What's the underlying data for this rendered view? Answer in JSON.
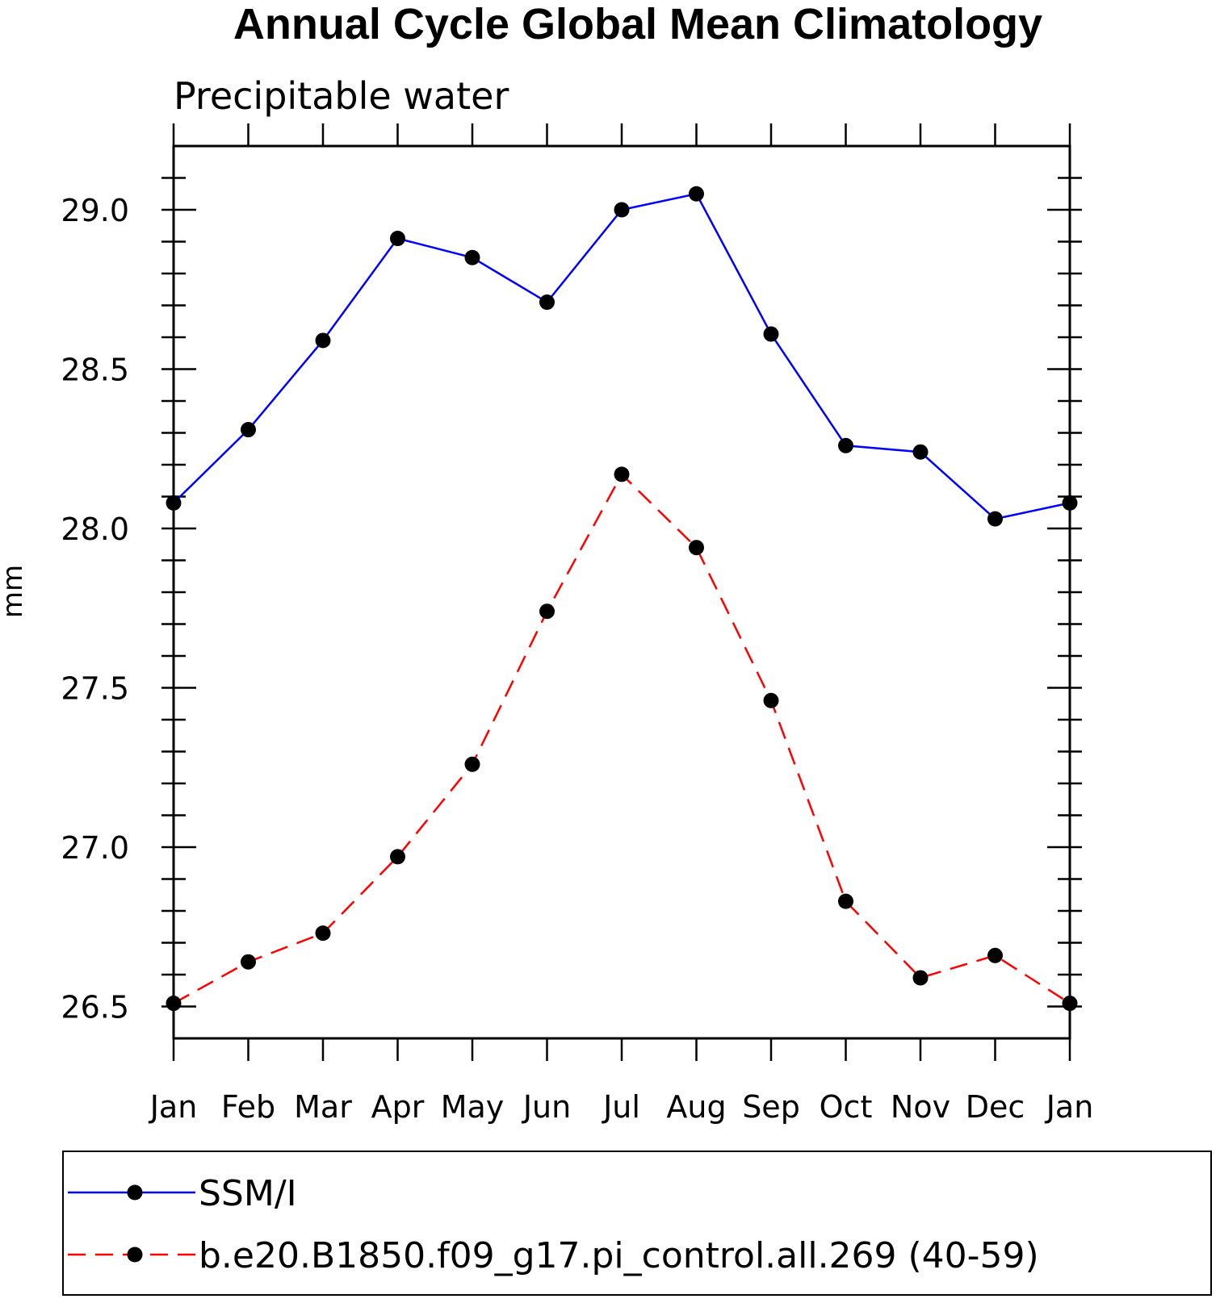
{
  "chart_data": {
    "type": "line",
    "title": "Annual Cycle Global Mean Climatology",
    "subtitle": "Precipitable water",
    "ylabel": "mm",
    "xlabel": "",
    "ylim": [
      26.4,
      29.2
    ],
    "yticks": [
      "26.5",
      "27.0",
      "27.5",
      "28.0",
      "28.5",
      "29.0"
    ],
    "categories": [
      "Jan",
      "Feb",
      "Mar",
      "Apr",
      "May",
      "Jun",
      "Jul",
      "Aug",
      "Sep",
      "Oct",
      "Nov",
      "Dec",
      "Jan"
    ],
    "series": [
      {
        "name": "SSM/I",
        "color": "#0000ff",
        "dash": "solid",
        "values": [
          28.08,
          28.31,
          28.59,
          28.91,
          28.85,
          28.71,
          29.0,
          29.05,
          28.61,
          28.26,
          28.24,
          28.03,
          28.08
        ]
      },
      {
        "name": "b.e20.B1850.f09_g17.pi_control.all.269 (40-59)",
        "color": "#ff0000",
        "dash": "dashed",
        "values": [
          26.51,
          26.64,
          26.73,
          26.97,
          27.26,
          27.74,
          28.17,
          27.94,
          27.46,
          26.83,
          26.59,
          26.66,
          26.51
        ]
      }
    ],
    "legend_position": "bottom",
    "grid": false
  }
}
